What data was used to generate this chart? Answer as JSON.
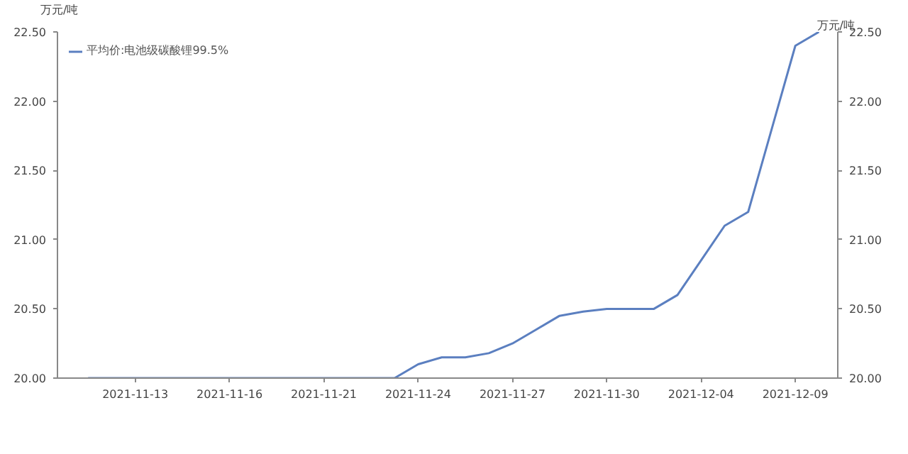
{
  "chart_data": {
    "type": "line",
    "categories": [
      null,
      null,
      "2021-11-13",
      null,
      null,
      null,
      "2021-11-16",
      null,
      null,
      null,
      "2021-11-21",
      null,
      null,
      null,
      "2021-11-24",
      null,
      null,
      null,
      "2021-11-27",
      null,
      null,
      null,
      "2021-11-30",
      null,
      null,
      null,
      "2021-12-04",
      null,
      null,
      null,
      "2021-12-09",
      null
    ],
    "series": [
      {
        "name": "平均价:电池级碳酸锂99.5%",
        "color": "#5b7fc0",
        "values": [
          20.0,
          20.0,
          20.0,
          20.0,
          20.0,
          20.0,
          20.0,
          20.0,
          20.0,
          20.0,
          20.0,
          20.0,
          20.0,
          20.0,
          20.1,
          20.15,
          20.15,
          20.18,
          20.25,
          20.35,
          20.45,
          20.48,
          20.5,
          20.5,
          20.5,
          20.6,
          20.85,
          21.1,
          21.2,
          21.8,
          22.4,
          22.5
        ]
      }
    ],
    "ylabel": "万元/吨",
    "y2label": "万元/吨",
    "ylim": [
      20.0,
      22.5
    ],
    "yticks": [
      {
        "value": 20.0,
        "label": "20.00"
      },
      {
        "value": 20.5,
        "label": "20.50"
      },
      {
        "value": 21.0,
        "label": "21.00"
      },
      {
        "value": 21.5,
        "label": "21.50"
      },
      {
        "value": 22.0,
        "label": "22.00"
      },
      {
        "value": 22.5,
        "label": "22.50"
      }
    ],
    "y2lim": [
      20.0,
      22.5
    ],
    "y2ticks": [
      {
        "value": 20.0,
        "label": "20.00"
      },
      {
        "value": 20.5,
        "label": "20.50"
      },
      {
        "value": 21.0,
        "label": "21.00"
      },
      {
        "value": 21.5,
        "label": "21.50"
      },
      {
        "value": 22.0,
        "label": "22.00"
      },
      {
        "value": 22.5,
        "label": "22.50"
      }
    ],
    "grid": false,
    "legend": "top left",
    "marker": "none",
    "line_style": "solid"
  }
}
